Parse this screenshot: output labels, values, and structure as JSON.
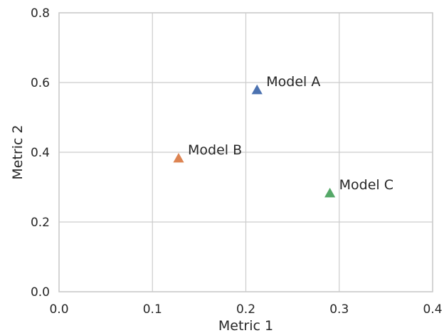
{
  "chart_data": {
    "type": "scatter",
    "xlabel": "Metric 1",
    "ylabel": "Metric 2",
    "xlim": [
      0.0,
      0.4
    ],
    "ylim": [
      0.0,
      0.8
    ],
    "xticks": [
      "0.0",
      "0.1",
      "0.2",
      "0.3",
      "0.4"
    ],
    "yticks": [
      "0.0",
      "0.2",
      "0.4",
      "0.6",
      "0.8"
    ],
    "grid": true,
    "marker": "triangle",
    "points": [
      {
        "label": "Model A",
        "x": 0.212,
        "y": 0.578,
        "color": "#4c72b0"
      },
      {
        "label": "Model B",
        "x": 0.128,
        "y": 0.382,
        "color": "#dd8452"
      },
      {
        "label": "Model C",
        "x": 0.29,
        "y": 0.282,
        "color": "#55a868"
      }
    ]
  }
}
